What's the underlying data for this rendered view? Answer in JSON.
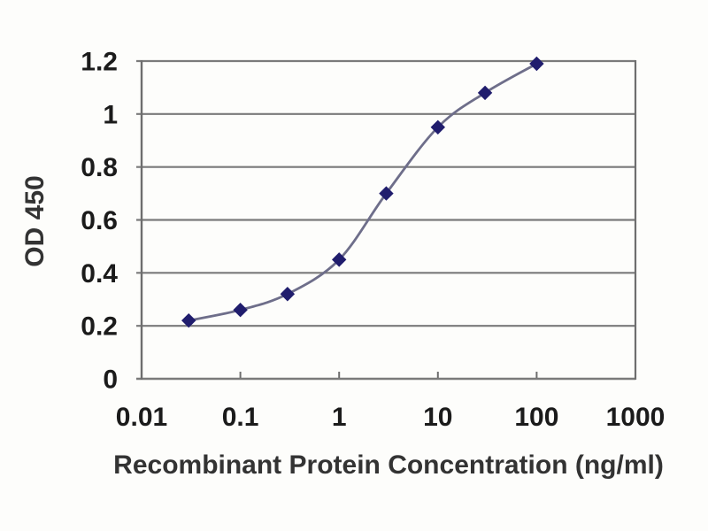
{
  "chart_data": {
    "type": "line",
    "title": "",
    "xlabel": "Recombinant Protein Concentration (ng/ml)",
    "ylabel": "OD 450",
    "x_scale": "log",
    "xlim": [
      0.01,
      1000
    ],
    "ylim": [
      0,
      1.2
    ],
    "x_tick_values": [
      0.01,
      0.1,
      1,
      10,
      100,
      1000
    ],
    "x_tick_labels": [
      "0.01",
      "0.1",
      "1",
      "10",
      "100",
      "1000"
    ],
    "y_tick_values": [
      0,
      0.2,
      0.4,
      0.6,
      0.8,
      1,
      1.2
    ],
    "y_tick_labels": [
      "0",
      "0.2",
      "0.4",
      "0.6",
      "0.8",
      "1",
      "1.2"
    ],
    "grid": "horizontal",
    "legend_position": "none",
    "series": [
      {
        "name": "OD 450",
        "marker": "diamond",
        "line_style": "smooth",
        "x": [
          0.03,
          0.1,
          0.3,
          1,
          3,
          10,
          30,
          100
        ],
        "y": [
          0.22,
          0.26,
          0.32,
          0.45,
          0.7,
          0.95,
          1.08,
          1.19
        ]
      }
    ],
    "colors": {
      "line": "#6e6e8a",
      "marker": "#201d6d",
      "grid": "#7a7a7a",
      "axis": "#6e6e6e",
      "tick_text": "#1b1b1b",
      "axis_title_text": "#333333"
    }
  }
}
